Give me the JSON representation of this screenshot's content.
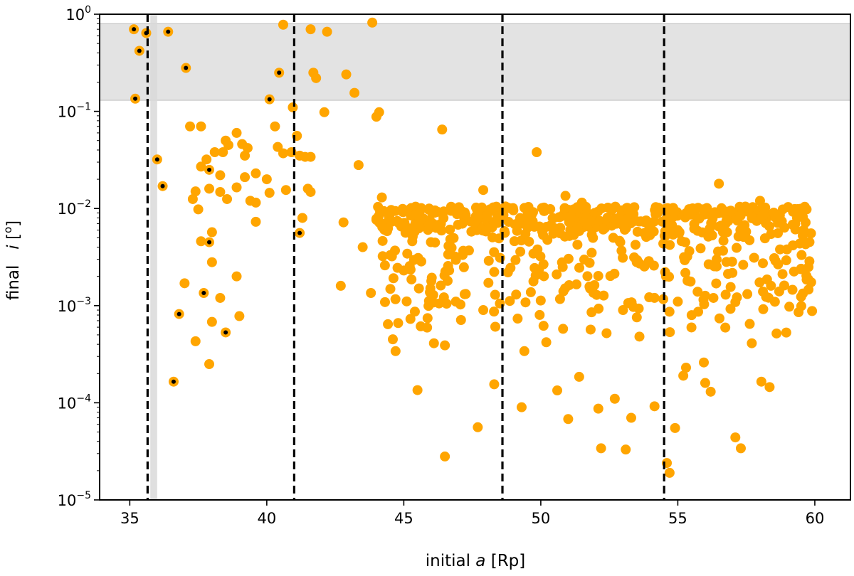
{
  "chart_data": {
    "type": "scatter",
    "title": "",
    "xlabel_pre": "initial ",
    "xlabel_var": "a",
    "xlabel_post": " [Rp]",
    "ylabel_pre": "final   ",
    "ylabel_var": "i",
    "ylabel_post": " [",
    "ylabel_unit": "o",
    "ylabel_close": "]",
    "xlim": [
      33.9,
      61.3
    ],
    "ylim": [
      1e-05,
      1
    ],
    "yscale": "log",
    "grid": false,
    "xticks": [
      35,
      40,
      45,
      50,
      55,
      60
    ],
    "xtick_labels": [
      "35",
      "40",
      "45",
      "50",
      "55",
      "60"
    ],
    "yticks": [
      1e-05,
      0.0001,
      0.001,
      0.01,
      0.1,
      1
    ],
    "ytick_labels": [
      {
        "base": "10",
        "exp": "−5"
      },
      {
        "base": "10",
        "exp": "−4"
      },
      {
        "base": "10",
        "exp": "−3"
      },
      {
        "base": "10",
        "exp": "−2"
      },
      {
        "base": "10",
        "exp": "−1"
      },
      {
        "base": "10",
        "exp": "0"
      }
    ],
    "point_color": "#FFA500",
    "marked_center_color": "#000000",
    "vlines": [
      35.65,
      41.0,
      48.6,
      54.5
    ],
    "vline_color": "#000000",
    "shaded_h_band": [
      0.13,
      0.8
    ],
    "shaded_v_band": [
      35.75,
      36.0
    ],
    "shade_color": "#d9d9d9",
    "points_marked": [
      [
        35.15,
        0.7
      ],
      [
        35.35,
        0.42
      ],
      [
        35.2,
        0.135
      ],
      [
        35.6,
        0.64
      ],
      [
        36.4,
        0.66
      ],
      [
        37.05,
        0.28
      ],
      [
        36.0,
        0.032
      ],
      [
        36.2,
        0.017
      ],
      [
        40.1,
        0.133
      ],
      [
        40.45,
        0.25
      ],
      [
        37.9,
        0.025
      ],
      [
        37.9,
        0.0045
      ],
      [
        37.7,
        0.00135
      ],
      [
        36.8,
        0.00082
      ],
      [
        36.6,
        0.000165
      ],
      [
        38.5,
        0.00053
      ],
      [
        41.2,
        0.0056
      ]
    ],
    "points": [
      [
        40.6,
        0.78
      ],
      [
        41.6,
        0.7
      ],
      [
        42.2,
        0.66
      ],
      [
        43.85,
        0.82
      ],
      [
        41.7,
        0.25
      ],
      [
        41.8,
        0.22
      ],
      [
        42.9,
        0.24
      ],
      [
        43.2,
        0.155
      ],
      [
        40.95,
        0.11
      ],
      [
        42.1,
        0.098
      ],
      [
        44.0,
        0.088
      ],
      [
        44.1,
        0.098
      ],
      [
        46.4,
        0.065
      ],
      [
        49.85,
        0.038
      ],
      [
        37.2,
        0.07
      ],
      [
        37.6,
        0.07
      ],
      [
        38.9,
        0.06
      ],
      [
        38.6,
        0.045
      ],
      [
        38.5,
        0.05
      ],
      [
        38.4,
        0.038
      ],
      [
        38.1,
        0.038
      ],
      [
        37.8,
        0.032
      ],
      [
        37.6,
        0.027
      ],
      [
        38.3,
        0.022
      ],
      [
        39.1,
        0.046
      ],
      [
        39.3,
        0.042
      ],
      [
        39.2,
        0.035
      ],
      [
        39.6,
        0.023
      ],
      [
        39.2,
        0.021
      ],
      [
        40.0,
        0.02
      ],
      [
        40.3,
        0.07
      ],
      [
        40.4,
        0.043
      ],
      [
        40.6,
        0.037
      ],
      [
        40.9,
        0.038
      ],
      [
        41.1,
        0.056
      ],
      [
        41.2,
        0.035
      ],
      [
        41.4,
        0.034
      ],
      [
        41.6,
        0.034
      ],
      [
        43.35,
        0.028
      ],
      [
        37.4,
        0.015
      ],
      [
        37.5,
        0.0098
      ],
      [
        37.3,
        0.0125
      ],
      [
        37.9,
        0.016
      ],
      [
        38.3,
        0.0148
      ],
      [
        38.55,
        0.0125
      ],
      [
        38.9,
        0.0165
      ],
      [
        39.4,
        0.012
      ],
      [
        39.6,
        0.0115
      ],
      [
        40.1,
        0.0145
      ],
      [
        40.7,
        0.0155
      ],
      [
        41.5,
        0.016
      ],
      [
        41.6,
        0.0148
      ],
      [
        41.3,
        0.008
      ],
      [
        38.0,
        0.0057
      ],
      [
        37.6,
        0.0046
      ],
      [
        38.0,
        0.0028
      ],
      [
        39.6,
        0.0073
      ],
      [
        42.8,
        0.0072
      ],
      [
        43.5,
        0.004
      ],
      [
        37.0,
        0.0017
      ],
      [
        38.9,
        0.002
      ],
      [
        39.0,
        0.00078
      ],
      [
        38.3,
        0.0012
      ],
      [
        38.0,
        0.00068
      ],
      [
        37.4,
        0.00043
      ],
      [
        37.9,
        0.00025
      ],
      [
        42.7,
        0.0016
      ],
      [
        43.8,
        0.00135
      ],
      [
        45.5,
        0.000135
      ],
      [
        46.5,
        0.00039
      ],
      [
        46.1,
        0.00041
      ],
      [
        47.7,
        5.6e-05
      ],
      [
        46.5,
        2.8e-05
      ],
      [
        48.3,
        0.000155
      ],
      [
        49.3,
        9e-05
      ],
      [
        49.4,
        0.00034
      ],
      [
        50.1,
        0.00062
      ],
      [
        51.0,
        6.8e-05
      ],
      [
        50.6,
        0.000134
      ],
      [
        51.4,
        0.000185
      ],
      [
        52.1,
        8.7e-05
      ],
      [
        52.2,
        3.4e-05
      ],
      [
        52.7,
        0.00011
      ],
      [
        53.1,
        3.3e-05
      ],
      [
        53.3,
        7e-05
      ],
      [
        53.6,
        0.00048
      ],
      [
        54.15,
        9.2e-05
      ],
      [
        55.2,
        0.00019
      ],
      [
        55.3,
        0.00023
      ],
      [
        56.0,
        0.00016
      ],
      [
        56.2,
        0.00013
      ],
      [
        57.1,
        4.4e-05
      ],
      [
        57.3,
        3.4e-05
      ],
      [
        58.05,
        0.000165
      ],
      [
        58.35,
        0.000145
      ],
      [
        59.9,
        0.00088
      ],
      [
        54.6,
        2.4e-05
      ],
      [
        54.7,
        1.9e-05
      ],
      [
        50.2,
        0.00042
      ],
      [
        52.4,
        0.00052
      ],
      [
        55.95,
        0.00026
      ],
      [
        54.9,
        5.5e-05
      ],
      [
        57.7,
        0.00041
      ],
      [
        51.8,
        0.0015
      ],
      [
        44.6,
        0.00045
      ],
      [
        44.7,
        0.00034
      ],
      [
        46.6,
        0.0018
      ],
      [
        47.9,
        0.0009
      ],
      [
        48.8,
        0.0022
      ],
      [
        50.8,
        0.0025
      ],
      [
        53.5,
        0.0028
      ],
      [
        56.3,
        0.0012
      ],
      [
        58.4,
        0.0016
      ],
      [
        59.5,
        0.0024
      ],
      [
        56.5,
        0.018
      ],
      [
        58.0,
        0.012
      ],
      [
        45.0,
        0.0023
      ],
      [
        47.2,
        0.0036
      ],
      [
        52.9,
        0.0045
      ],
      [
        55.6,
        0.0062
      ],
      [
        57.4,
        0.0051
      ],
      [
        48.1,
        0.0069
      ],
      [
        51.1,
        0.0075
      ],
      [
        46.9,
        0.0011
      ],
      [
        49.1,
        0.0013
      ],
      [
        53.0,
        0.0009
      ],
      [
        55.0,
        0.0011
      ],
      [
        58.7,
        0.0014
      ],
      [
        44.2,
        0.013
      ],
      [
        47.9,
        0.0155
      ],
      [
        51.5,
        0.0115
      ],
      [
        50.9,
        0.0135
      ],
      [
        53.2,
        0.0095
      ],
      [
        54.8,
        0.0088
      ],
      [
        59.7,
        0.0098
      ]
    ],
    "dense_band": {
      "x_range": [
        44.0,
        60.0
      ],
      "y_core": [
        0.004,
        0.0105
      ],
      "y_tail": [
        0.0005,
        0.004
      ],
      "core_count": 430,
      "tail_count": 200,
      "seed": 7
    }
  }
}
